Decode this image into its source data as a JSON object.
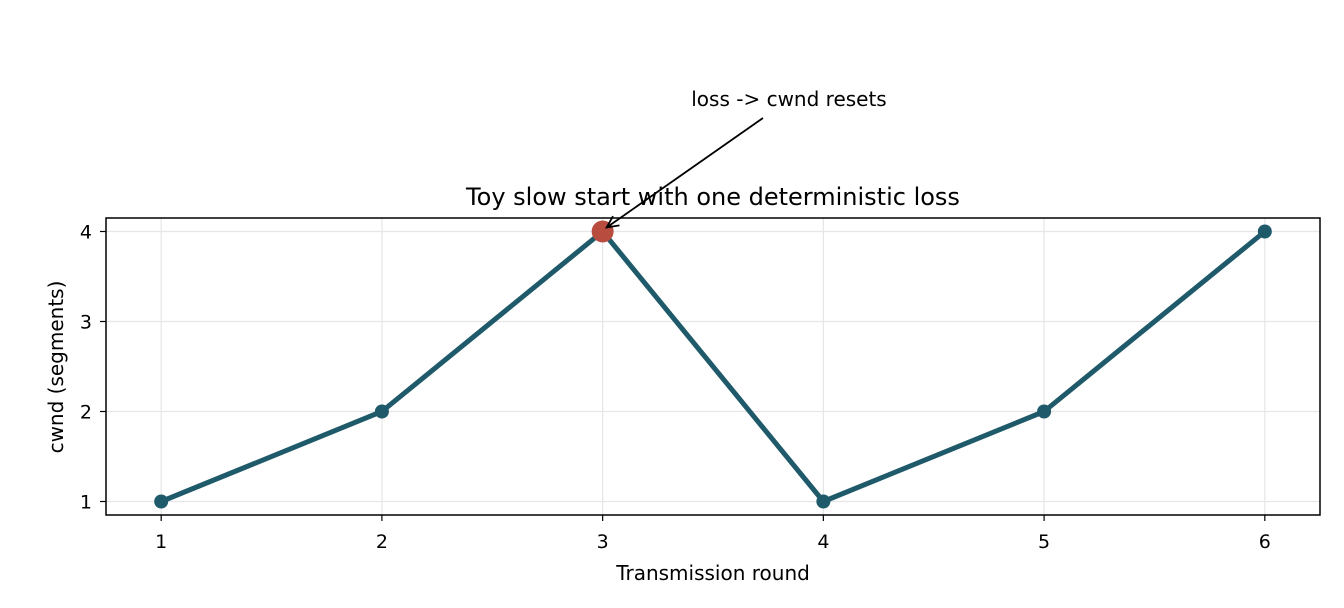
{
  "chart_data": {
    "type": "line",
    "title": "Toy slow start with one deterministic loss",
    "xlabel": "Transmission round",
    "ylabel": "cwnd (segments)",
    "x": [
      1,
      2,
      3,
      4,
      5,
      6
    ],
    "series": [
      {
        "values": [
          1,
          2,
          4,
          1,
          2,
          4
        ]
      }
    ],
    "xticks": [
      1,
      2,
      3,
      4,
      5,
      6
    ],
    "yticks": [
      1,
      2,
      3,
      4
    ],
    "xlim": [
      0.75,
      6.25
    ],
    "ylim": [
      0.85,
      4.15
    ],
    "grid": true,
    "legend": "none",
    "highlight": {
      "x": 3,
      "y": 4
    },
    "annotation": {
      "text": "loss -> cwnd resets",
      "x": 3,
      "y": 4
    },
    "colors": {
      "line": "#1f5a6b",
      "highlight": "#b84c3f"
    }
  }
}
